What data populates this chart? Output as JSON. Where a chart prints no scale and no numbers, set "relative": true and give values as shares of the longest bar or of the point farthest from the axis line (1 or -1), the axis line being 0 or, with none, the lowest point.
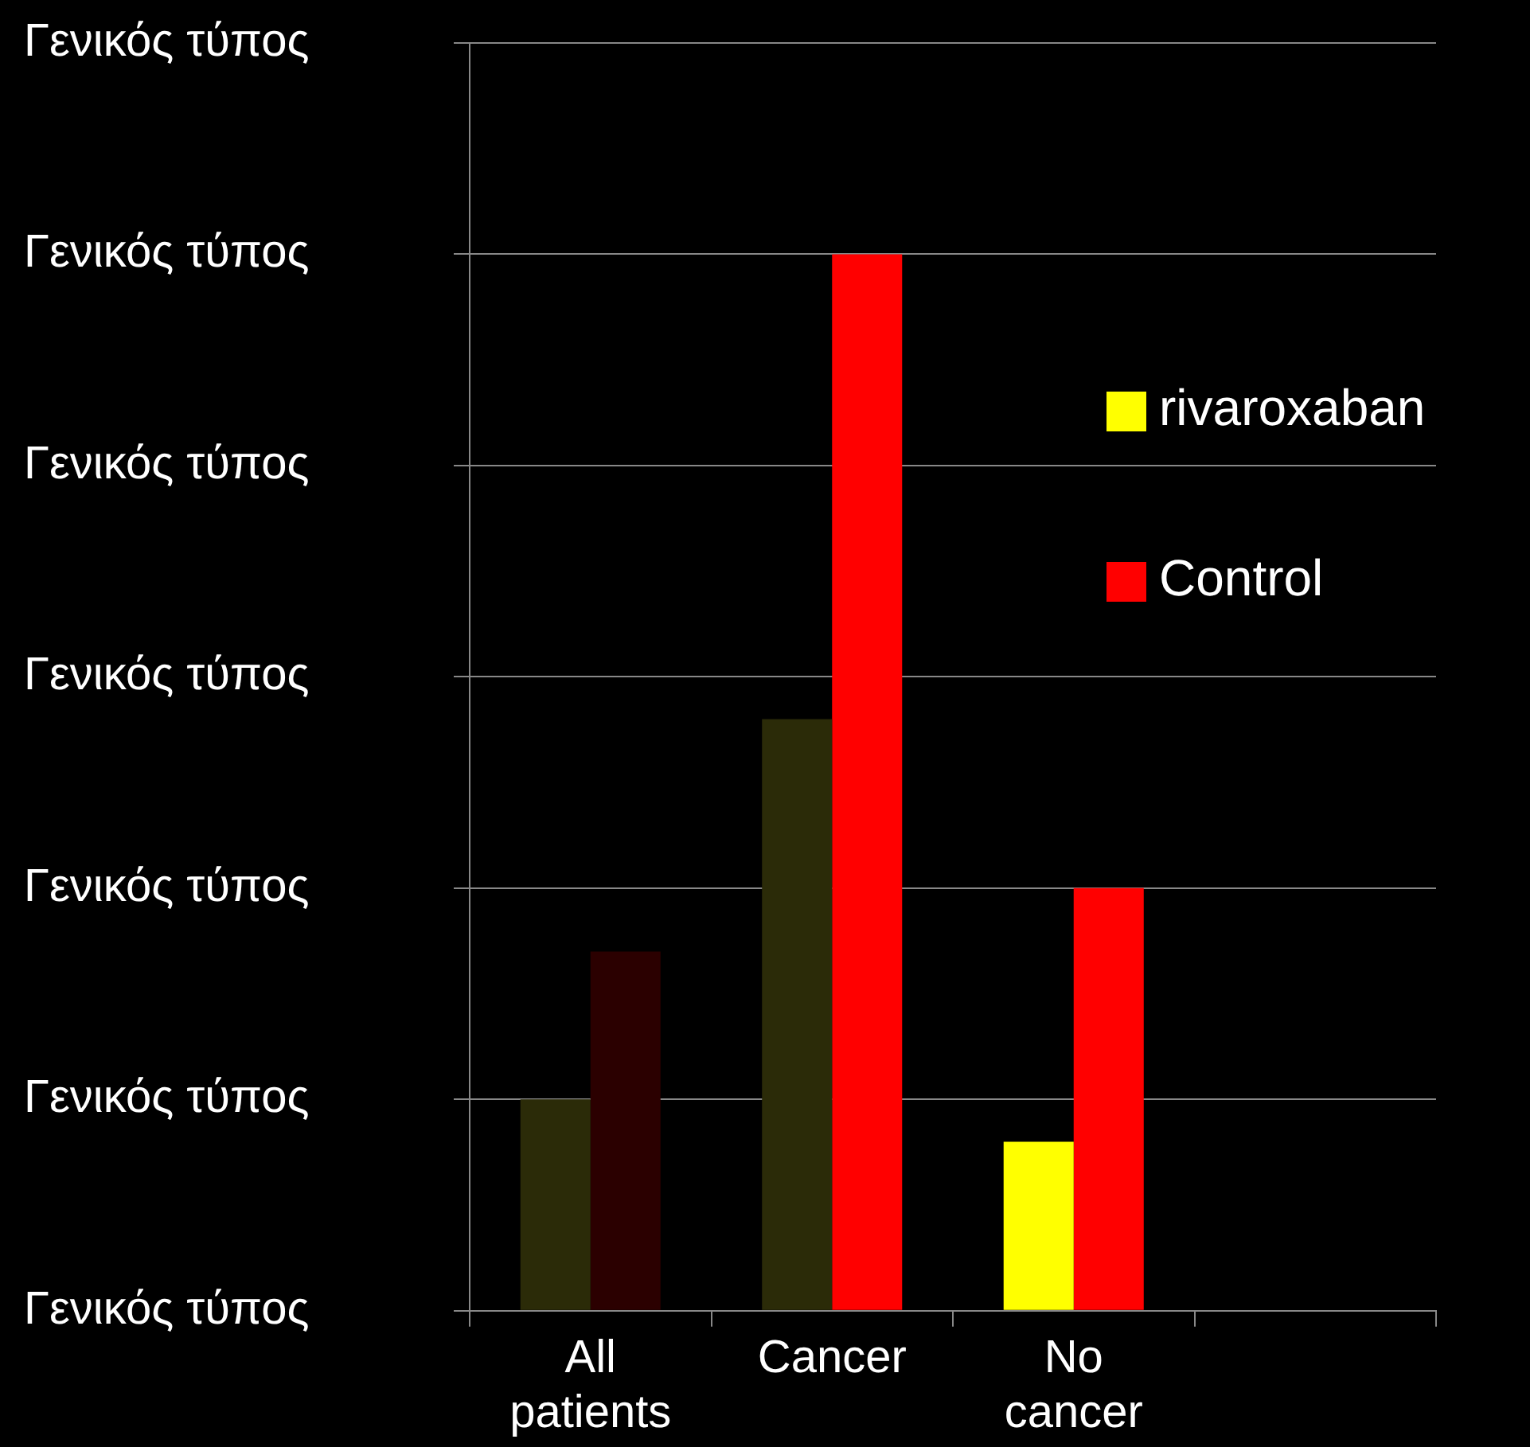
{
  "chart_data": {
    "type": "bar",
    "relative": true,
    "categories": [
      "All patients",
      "Cancer",
      "No cancer",
      null
    ],
    "series": [
      {
        "name": "rivaroxaban",
        "color": "#ffff00",
        "colors": [
          "#2b2b08",
          "#2b2b08",
          "#ffff00",
          null
        ],
        "values": [
          0.2,
          0.56,
          0.16,
          null
        ]
      },
      {
        "name": "Control",
        "color": "#ff0000",
        "colors": [
          "#2b0000",
          "#ff0000",
          "#ff0000",
          null
        ],
        "values": [
          0.34,
          1.0,
          0.4,
          null
        ]
      }
    ],
    "annotations": [
      "Γενικός τύπος",
      "Γενικός τύπος",
      "Γενικός τύπος",
      "Γενικός τύπος",
      "Γενικός τύπος",
      "Γενικός τύπος",
      "Γενικός τύπος"
    ],
    "grid": "y",
    "legend": "right"
  }
}
